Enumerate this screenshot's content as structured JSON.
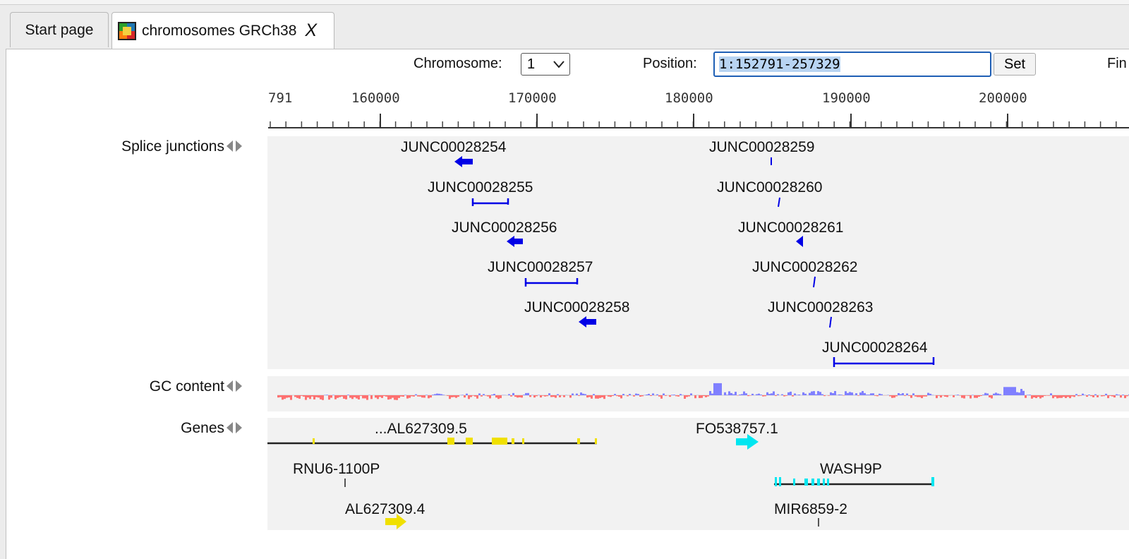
{
  "tabs": [
    {
      "label": "Start page"
    },
    {
      "label": "chromosomes GRCh38",
      "close": "X"
    }
  ],
  "toolbar": {
    "chromosome_label": "Chromosome:",
    "chromosome_value": "1",
    "position_label": "Position:",
    "position_value": "1:152791-257329",
    "set_label": "Set",
    "find_label": "Fin"
  },
  "ruler": {
    "ticks": [
      "791",
      "160000",
      "170000",
      "180000",
      "190000",
      "200000"
    ]
  },
  "tracks": {
    "splice": {
      "label": "Splice junctions",
      "features": [
        "JUNC00028254",
        "JUNC00028255",
        "JUNC00028256",
        "JUNC00028257",
        "JUNC00028258",
        "JUNC00028259",
        "JUNC00028260",
        "JUNC00028261",
        "JUNC00028262",
        "JUNC00028263",
        "JUNC00028264"
      ]
    },
    "gc": {
      "label": "GC content"
    },
    "genes": {
      "label": "Genes",
      "features": [
        "...AL627309.5",
        "FO538757.1",
        "RNU6-1100P",
        "WASH9P",
        "AL627309.4",
        "MIR6859-2"
      ]
    }
  },
  "colors": {
    "junction": "#0000e6",
    "gc_high": "#8080ff",
    "gc_low": "#ff7070",
    "gene_yellow": "#f0e000",
    "gene_cyan": "#00e6f0",
    "track_bg": "#f2f2f2"
  }
}
